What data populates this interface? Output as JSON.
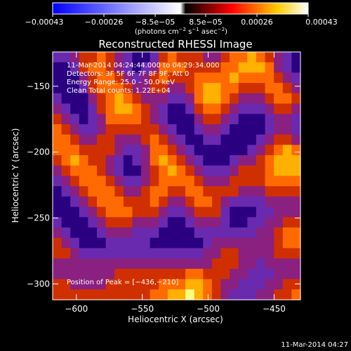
{
  "colorbar": {
    "tick_labels": [
      "−0.00043",
      "−0.00026",
      "−8.5e−05",
      "8.5e−05",
      "0.00026",
      "0.00043"
    ],
    "units_label": "(photons cm",
    "units_exp1": "−2",
    "units_mid": " s",
    "units_exp2": "−1",
    "units_end": " asec",
    "units_exp3": "−2",
    "units_close": ")",
    "range": [
      -0.00043,
      0.00043
    ],
    "colors": [
      "#0000ff",
      "#ffffff",
      "#ff0000",
      "#ffff00",
      "#ffffff"
    ]
  },
  "info": {
    "time_range": "11-Mar-2014 04:24:44.000 to 04:29:34.000",
    "detectors": "Detectors: 3F 5F 6F 7F 8F 9F, Att 0",
    "energy": "Energy Range: 25.0 – 50.0 keV",
    "clean": "Clean     Total counts: 1.22E+04",
    "peak": "Position of Peak = [−436,−210]"
  },
  "footer": {
    "timestamp": "11-Mar-2014 04:27"
  },
  "chart_data": {
    "type": "heatmap",
    "title": "Reconstructed RHESSI Image",
    "xlabel": "Heliocentric X (arcsec)",
    "ylabel": "Heliocentric Y (arcsec)",
    "xlim": [
      -618,
      -430
    ],
    "ylim": [
      -312,
      -124
    ],
    "x_ticks": [
      -600,
      -550,
      -500,
      -450
    ],
    "x_tick_labels": [
      "−600",
      "−550",
      "−500",
      "−450"
    ],
    "y_ticks": [
      -150,
      -200,
      -250,
      -300
    ],
    "y_tick_labels": [
      "−150",
      "−200",
      "−250",
      "−300"
    ],
    "grid": false,
    "colormap": [
      "#2a0080",
      "#6a2ab0",
      "#8a2080",
      "#d03000",
      "#ff6a00",
      "#ffb000",
      "#ffff80"
    ],
    "peak": [
      -436,
      -210
    ],
    "cells": [
      [
        2,
        2,
        3,
        4,
        4,
        5,
        4,
        3,
        2,
        1,
        1,
        2,
        4,
        5,
        4,
        4,
        4,
        3,
        3,
        4,
        5,
        5,
        6,
        5,
        4,
        3,
        2,
        1
      ],
      [
        1,
        1,
        2,
        4,
        5,
        5,
        4,
        3,
        2,
        1,
        2,
        3,
        5,
        5,
        5,
        4,
        4,
        4,
        4,
        5,
        5,
        6,
        6,
        6,
        5,
        3,
        2,
        1
      ],
      [
        1,
        1,
        1,
        3,
        4,
        5,
        5,
        4,
        3,
        2,
        3,
        4,
        5,
        4,
        4,
        4,
        5,
        5,
        5,
        5,
        6,
        5,
        5,
        5,
        5,
        4,
        3,
        2
      ],
      [
        1,
        1,
        1,
        2,
        4,
        5,
        5,
        5,
        4,
        3,
        3,
        4,
        4,
        3,
        3,
        4,
        5,
        6,
        6,
        5,
        5,
        4,
        4,
        4,
        5,
        5,
        4,
        3
      ],
      [
        2,
        1,
        1,
        1,
        3,
        4,
        5,
        6,
        5,
        4,
        3,
        3,
        3,
        2,
        2,
        3,
        5,
        6,
        6,
        5,
        4,
        3,
        3,
        3,
        4,
        5,
        5,
        4
      ],
      [
        3,
        2,
        1,
        1,
        2,
        4,
        5,
        6,
        6,
        5,
        4,
        3,
        2,
        1,
        1,
        2,
        4,
        5,
        5,
        4,
        3,
        2,
        2,
        2,
        3,
        4,
        4,
        3
      ],
      [
        4,
        3,
        2,
        1,
        2,
        3,
        5,
        5,
        5,
        5,
        4,
        3,
        2,
        1,
        1,
        1,
        3,
        4,
        4,
        3,
        2,
        1,
        1,
        1,
        2,
        3,
        3,
        2
      ],
      [
        5,
        4,
        3,
        2,
        2,
        3,
        4,
        4,
        4,
        4,
        4,
        4,
        3,
        2,
        1,
        1,
        2,
        3,
        3,
        2,
        1,
        1,
        1,
        1,
        2,
        3,
        3,
        2
      ],
      [
        5,
        5,
        4,
        3,
        3,
        4,
        4,
        3,
        3,
        3,
        4,
        5,
        4,
        3,
        2,
        1,
        1,
        2,
        2,
        1,
        1,
        1,
        1,
        2,
        3,
        4,
        4,
        3
      ],
      [
        5,
        5,
        5,
        4,
        4,
        4,
        4,
        3,
        2,
        2,
        3,
        5,
        5,
        4,
        3,
        2,
        1,
        1,
        1,
        1,
        1,
        1,
        2,
        3,
        4,
        5,
        6,
        5
      ],
      [
        4,
        5,
        6,
        5,
        4,
        4,
        3,
        2,
        1,
        2,
        3,
        5,
        6,
        5,
        4,
        3,
        2,
        1,
        1,
        1,
        2,
        3,
        3,
        4,
        5,
        6,
        6,
        6
      ],
      [
        3,
        4,
        5,
        5,
        5,
        4,
        3,
        2,
        1,
        1,
        3,
        4,
        5,
        6,
        5,
        4,
        3,
        2,
        2,
        2,
        3,
        4,
        4,
        4,
        5,
        6,
        6,
        6
      ],
      [
        2,
        3,
        4,
        5,
        5,
        5,
        4,
        3,
        2,
        2,
        3,
        4,
        5,
        5,
        5,
        5,
        4,
        3,
        3,
        3,
        4,
        4,
        4,
        4,
        5,
        5,
        5,
        5
      ],
      [
        1,
        2,
        3,
        4,
        5,
        5,
        5,
        4,
        3,
        3,
        4,
        5,
        5,
        4,
        4,
        5,
        5,
        4,
        4,
        4,
        4,
        3,
        3,
        3,
        4,
        4,
        4,
        4
      ],
      [
        1,
        1,
        2,
        3,
        4,
        5,
        5,
        5,
        4,
        4,
        4,
        5,
        4,
        3,
        3,
        4,
        5,
        5,
        4,
        3,
        2,
        2,
        2,
        2,
        3,
        3,
        3,
        3
      ],
      [
        1,
        1,
        1,
        2,
        3,
        4,
        5,
        5,
        5,
        4,
        4,
        4,
        3,
        2,
        2,
        3,
        4,
        4,
        4,
        2,
        1,
        1,
        1,
        2,
        2,
        3,
        3,
        3
      ],
      [
        2,
        1,
        1,
        1,
        2,
        3,
        4,
        4,
        4,
        3,
        3,
        3,
        2,
        1,
        1,
        2,
        3,
        3,
        3,
        2,
        1,
        1,
        2,
        2,
        3,
        3,
        4,
        4
      ],
      [
        3,
        2,
        1,
        1,
        1,
        2,
        3,
        3,
        3,
        2,
        2,
        2,
        1,
        1,
        1,
        1,
        2,
        2,
        2,
        2,
        2,
        2,
        2,
        3,
        3,
        4,
        5,
        5
      ],
      [
        4,
        3,
        2,
        1,
        1,
        1,
        2,
        2,
        2,
        2,
        2,
        1,
        1,
        1,
        1,
        1,
        1,
        2,
        3,
        3,
        3,
        3,
        3,
        3,
        3,
        4,
        5,
        5
      ],
      [
        4,
        4,
        3,
        2,
        2,
        2,
        2,
        2,
        2,
        2,
        2,
        2,
        2,
        2,
        2,
        2,
        2,
        3,
        3,
        4,
        4,
        3,
        3,
        3,
        3,
        4,
        4,
        4
      ],
      [
        3,
        3,
        3,
        3,
        3,
        3,
        3,
        3,
        3,
        3,
        3,
        3,
        3,
        3,
        3,
        3,
        3,
        3,
        4,
        4,
        4,
        3,
        3,
        2,
        3,
        3,
        3,
        3
      ],
      [
        3,
        3,
        3,
        3,
        3,
        3,
        3,
        4,
        4,
        4,
        4,
        4,
        4,
        4,
        4,
        5,
        5,
        4,
        4,
        4,
        3,
        3,
        2,
        2,
        2,
        3,
        3,
        3
      ],
      [
        4,
        4,
        3,
        3,
        3,
        3,
        4,
        4,
        4,
        4,
        4,
        4,
        5,
        5,
        5,
        6,
        6,
        5,
        4,
        3,
        3,
        2,
        2,
        2,
        3,
        3,
        4,
        4
      ],
      [
        4,
        4,
        4,
        4,
        4,
        4,
        4,
        4,
        4,
        4,
        4,
        5,
        5,
        6,
        6,
        7,
        6,
        5,
        4,
        3,
        2,
        2,
        2,
        3,
        3,
        4,
        4,
        5
      ]
    ]
  }
}
